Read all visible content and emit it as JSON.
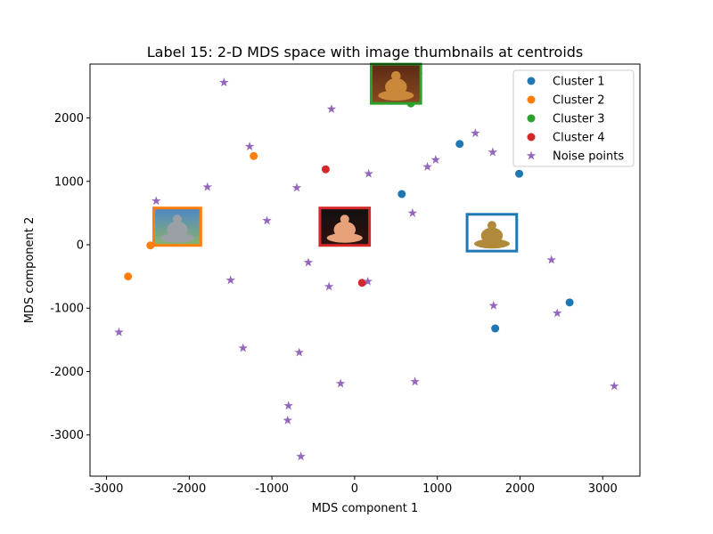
{
  "chart_data": {
    "type": "scatter",
    "title": "Label 15: 2-D MDS space with image thumbnails at centroids",
    "xlabel": "MDS component 1",
    "ylabel": "MDS component 2",
    "xlim": [
      -3200,
      3450
    ],
    "ylim": [
      -3650,
      2850
    ],
    "xticks": [
      -3000,
      -2000,
      -1000,
      0,
      1000,
      2000,
      3000
    ],
    "yticks": [
      -3000,
      -2000,
      -1000,
      0,
      1000,
      2000
    ],
    "grid": false,
    "legend_position": "top-right",
    "series": [
      {
        "name": "Cluster 1",
        "marker": "circle",
        "color": "#1f77b4",
        "points": [
          [
            1270,
            1590
          ],
          [
            570,
            800
          ],
          [
            1990,
            1120
          ],
          [
            1800,
            -40
          ],
          [
            2600,
            -910
          ],
          [
            1700,
            -1320
          ]
        ]
      },
      {
        "name": "Cluster 2",
        "marker": "circle",
        "color": "#ff7f0e",
        "points": [
          [
            -1220,
            1400
          ],
          [
            -2470,
            -10
          ],
          [
            -2740,
            -500
          ]
        ]
      },
      {
        "name": "Cluster 3",
        "marker": "circle",
        "color": "#2ca02c",
        "points": [
          [
            330,
            2820
          ],
          [
            680,
            2230
          ]
        ]
      },
      {
        "name": "Cluster 4",
        "marker": "circle",
        "color": "#d62728",
        "points": [
          [
            -350,
            1190
          ],
          [
            90,
            -600
          ]
        ]
      },
      {
        "name": "Noise points",
        "marker": "star",
        "color": "#9467bd",
        "points": [
          [
            -1580,
            2560
          ],
          [
            -280,
            2140
          ],
          [
            1460,
            1760
          ],
          [
            -1270,
            1550
          ],
          [
            1670,
            1460
          ],
          [
            980,
            1340
          ],
          [
            880,
            1230
          ],
          [
            170,
            1120
          ],
          [
            -1780,
            910
          ],
          [
            -700,
            900
          ],
          [
            -2400,
            690
          ],
          [
            700,
            500
          ],
          [
            -1060,
            380
          ],
          [
            -560,
            -280
          ],
          [
            2380,
            -240
          ],
          [
            -1500,
            -560
          ],
          [
            160,
            -580
          ],
          [
            -310,
            -660
          ],
          [
            1680,
            -960
          ],
          [
            2450,
            -1080
          ],
          [
            -2850,
            -1380
          ],
          [
            -1350,
            -1630
          ],
          [
            -670,
            -1700
          ],
          [
            730,
            -2160
          ],
          [
            -170,
            -2190
          ],
          [
            3140,
            -2230
          ],
          [
            -800,
            -2540
          ],
          [
            -810,
            -2770
          ],
          [
            -650,
            -3340
          ],
          [
            770,
            2680
          ]
        ]
      }
    ],
    "thumbnails": [
      {
        "cluster": "Cluster 1",
        "icon": "golden-buddha-statue-thumbnail",
        "frame_color": "#1f77b4",
        "x_range": [
          1360,
          1960
        ],
        "y_range": [
          -100,
          480
        ],
        "bg_top": "#ffffff",
        "bg_bottom": "#ffffff",
        "figure_color": "#b08a3a"
      },
      {
        "cluster": "Cluster 2",
        "icon": "stone-buddha-outdoor-thumbnail",
        "frame_color": "#ff7f0e",
        "x_range": [
          -2430,
          -1860
        ],
        "y_range": [
          -10,
          580
        ],
        "bg_top": "#4d86c8",
        "bg_bottom": "#8bb36a",
        "figure_color": "#9aa0a6"
      },
      {
        "cluster": "Cluster 3",
        "icon": "ornate-buddha-shrine-thumbnail",
        "frame_color": "#2ca02c",
        "x_range": [
          200,
          800
        ],
        "y_range": [
          2230,
          2850
        ],
        "bg_top": "#5a2a14",
        "bg_bottom": "#8a4a20",
        "figure_color": "#c9883a"
      },
      {
        "cluster": "Cluster 4",
        "icon": "illuminated-buddha-thumbnail",
        "frame_color": "#d62728",
        "x_range": [
          -420,
          180
        ],
        "y_range": [
          -10,
          580
        ],
        "bg_top": "#111111",
        "bg_bottom": "#301010",
        "figure_color": "#e8a27a"
      }
    ]
  }
}
